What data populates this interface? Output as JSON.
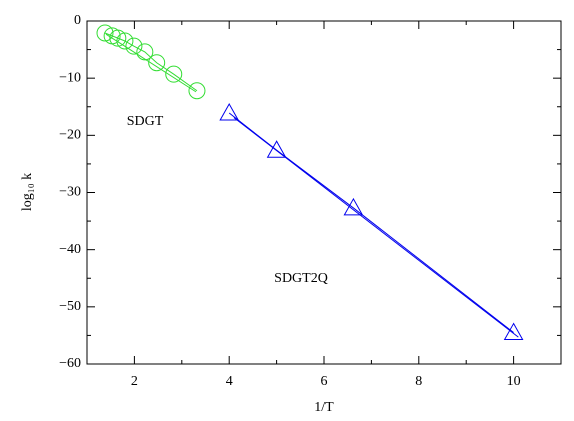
{
  "chart_data": {
    "type": "scatter",
    "xlabel": "1/T",
    "ylabel": "log₁₀ k",
    "xlim": [
      1,
      11
    ],
    "ylim": [
      -60,
      0
    ],
    "xticks": [
      2,
      4,
      6,
      8,
      10
    ],
    "xminorticks": [
      1,
      3,
      5,
      7,
      9,
      11
    ],
    "yticks": [
      {
        "value": -60,
        "label": "−60"
      },
      {
        "value": -50,
        "label": "−50"
      },
      {
        "value": -40,
        "label": "−40"
      },
      {
        "value": -30,
        "label": "−30"
      },
      {
        "value": -20,
        "label": "−20"
      },
      {
        "value": -10,
        "label": "−10"
      },
      0
    ],
    "yminorticks": [
      -55,
      -45,
      -35,
      -25,
      -15,
      -5
    ],
    "series": [
      {
        "name": "SDGT",
        "color": "#33dd33",
        "marker": "circle",
        "x": [
          1.38,
          1.53,
          1.65,
          1.8,
          1.99,
          2.22,
          2.47,
          2.83,
          3.32
        ],
        "values": [
          -2.1,
          -2.6,
          -3.0,
          -3.5,
          -4.4,
          -5.4,
          -7.3,
          -9.3,
          -12.2
        ]
      },
      {
        "name": "SDGT2Q",
        "color": "#0000ee",
        "marker": "triangle",
        "x": [
          4,
          5,
          6.62,
          10
        ],
        "values": [
          -16.1,
          -22.6,
          -32.7,
          -54.5
        ]
      },
      {
        "color": "#33dd33",
        "marker": "none",
        "x": [
          1.4,
          3.3
        ],
        "values": [
          -2.3,
          -12.4
        ]
      },
      {
        "color": "#0000ee",
        "marker": "none",
        "x": [
          4.1,
          10.1
        ],
        "values": [
          -16.9,
          -55.3
        ]
      }
    ]
  }
}
